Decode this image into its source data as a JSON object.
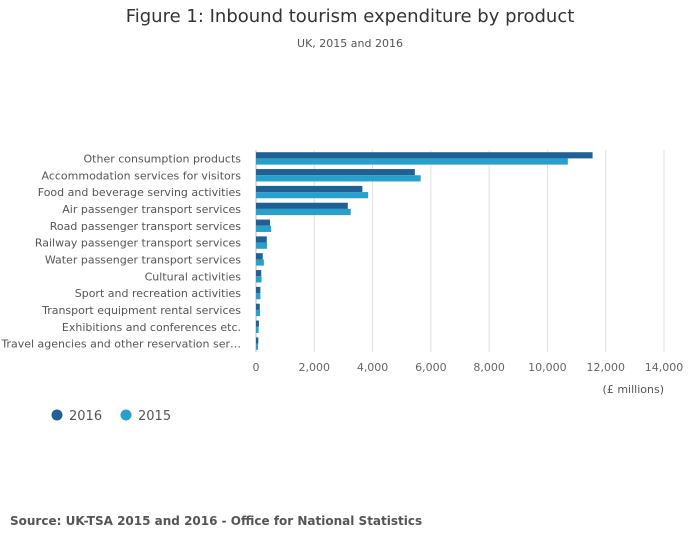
{
  "title": "Figure 1: Inbound tourism expenditure by product",
  "subtitle": "UK, 2015 and 2016",
  "source": "Source: UK-TSA 2015 and 2016 - Office for National Statistics",
  "colors": {
    "2016": "#206095",
    "2015": "#27a0cc",
    "grid": "#e0e0e0",
    "axis": "#bbbbbb"
  },
  "chart_data": {
    "type": "bar",
    "orientation": "horizontal",
    "title": "Figure 1: Inbound tourism expenditure by product",
    "subtitle": "UK, 2015 and 2016",
    "xlabel": "(£ millions)",
    "ylabel": "",
    "xlim": [
      0,
      14000
    ],
    "xticks": [
      0,
      2000,
      4000,
      6000,
      8000,
      10000,
      12000,
      14000
    ],
    "xtick_labels": [
      "0",
      "2,000",
      "4,000",
      "6,000",
      "8,000",
      "10,000",
      "12,000",
      "14,000"
    ],
    "grid": true,
    "legend_position": "bottom-left",
    "categories": [
      "Other consumption products",
      "Accommodation services for visitors",
      "Food and beverage serving activities",
      "Air passenger transport services",
      "Road passenger transport services",
      "Railway passenger transport services",
      "Water passenger transport services",
      "Cultural activities",
      "Sport and recreation activities",
      "Transport equipment rental services",
      "Exhibitions and conferences etc.",
      "Travel agencies and other reservation ser…"
    ],
    "series": [
      {
        "name": "2016",
        "values": [
          11550,
          5450,
          3650,
          3150,
          480,
          370,
          230,
          180,
          150,
          130,
          100,
          80
        ]
      },
      {
        "name": "2015",
        "values": [
          10700,
          5650,
          3850,
          3250,
          520,
          380,
          270,
          190,
          150,
          140,
          90,
          70
        ]
      }
    ]
  }
}
